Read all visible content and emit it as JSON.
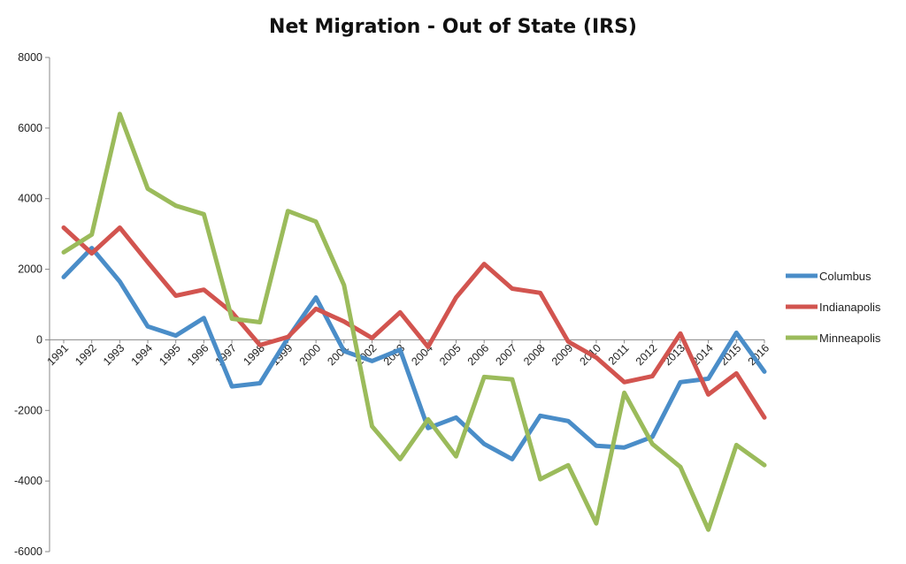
{
  "chart_data": {
    "type": "line",
    "title": "Net Migration - Out of State (IRS)",
    "xlabel": "",
    "ylabel": "",
    "categories": [
      "1991",
      "1992",
      "1993",
      "1994",
      "1995",
      "1996",
      "1997",
      "1998",
      "1999",
      "2000",
      "2001",
      "2002",
      "2003",
      "2004",
      "2005",
      "2006",
      "2007",
      "2008",
      "2009",
      "2010",
      "2011",
      "2012",
      "2013",
      "2014",
      "2015",
      "2016"
    ],
    "ylim": [
      -6000,
      8000
    ],
    "yticks": [
      8000,
      6000,
      4000,
      2000,
      0,
      -2000,
      -4000,
      -6000
    ],
    "grid": false,
    "legend_position": "right",
    "series": [
      {
        "name": "Columbus",
        "color": "#4a8dc8",
        "values": [
          1780,
          2600,
          1650,
          380,
          120,
          620,
          -1320,
          -1230,
          50,
          1200,
          -320,
          -600,
          -280,
          -2500,
          -2200,
          -2950,
          -3380,
          -2150,
          -2300,
          -3000,
          -3050,
          -2750,
          -1200,
          -1100,
          200,
          -900
        ]
      },
      {
        "name": "Indianapolis",
        "color": "#d2544f",
        "values": [
          3180,
          2450,
          3180,
          2200,
          1250,
          1420,
          780,
          -150,
          80,
          880,
          520,
          50,
          780,
          -200,
          1200,
          2150,
          1450,
          1330,
          -50,
          -500,
          -1200,
          -1030,
          180,
          -1550,
          -950,
          -2200
        ]
      },
      {
        "name": "Minneapolis",
        "color": "#9bbb5b",
        "values": [
          2480,
          2980,
          6400,
          4280,
          3800,
          3560,
          600,
          500,
          3650,
          3350,
          1550,
          -2450,
          -3380,
          -2250,
          -3300,
          -1050,
          -1120,
          -3950,
          -3550,
          -5200,
          -1500,
          -2950,
          -3600,
          -5380,
          -2980,
          -3550
        ]
      }
    ]
  }
}
